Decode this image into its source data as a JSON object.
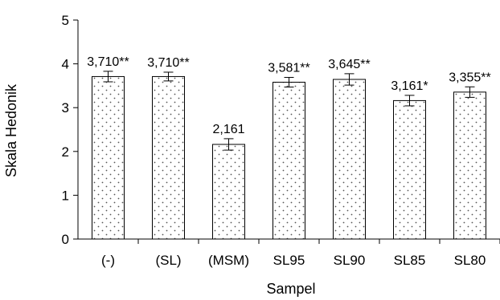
{
  "chart_data": {
    "type": "bar",
    "categories": [
      "(-)",
      "(SL)",
      "(MSM)",
      "SL95",
      "SL90",
      "SL85",
      "SL80"
    ],
    "values": [
      3.71,
      3.71,
      2.161,
      3.581,
      3.645,
      3.161,
      3.355
    ],
    "errors": [
      0.12,
      0.1,
      0.13,
      0.11,
      0.13,
      0.12,
      0.12
    ],
    "data_labels": [
      "3,710**",
      "3,710**",
      "2,161",
      "3,581**",
      "3,645**",
      "3,161*",
      "3,355**"
    ],
    "title": "",
    "xlabel": "Sampel",
    "ylabel": "Skala Hedonik",
    "ylim": [
      0,
      5
    ],
    "yticks": [
      "0",
      "1",
      "2",
      "3",
      "4",
      "5"
    ],
    "grid": false,
    "legend": "none",
    "bar_fill": "#ffffff",
    "bar_pattern": "dotted",
    "bar_stroke": "#000000"
  }
}
